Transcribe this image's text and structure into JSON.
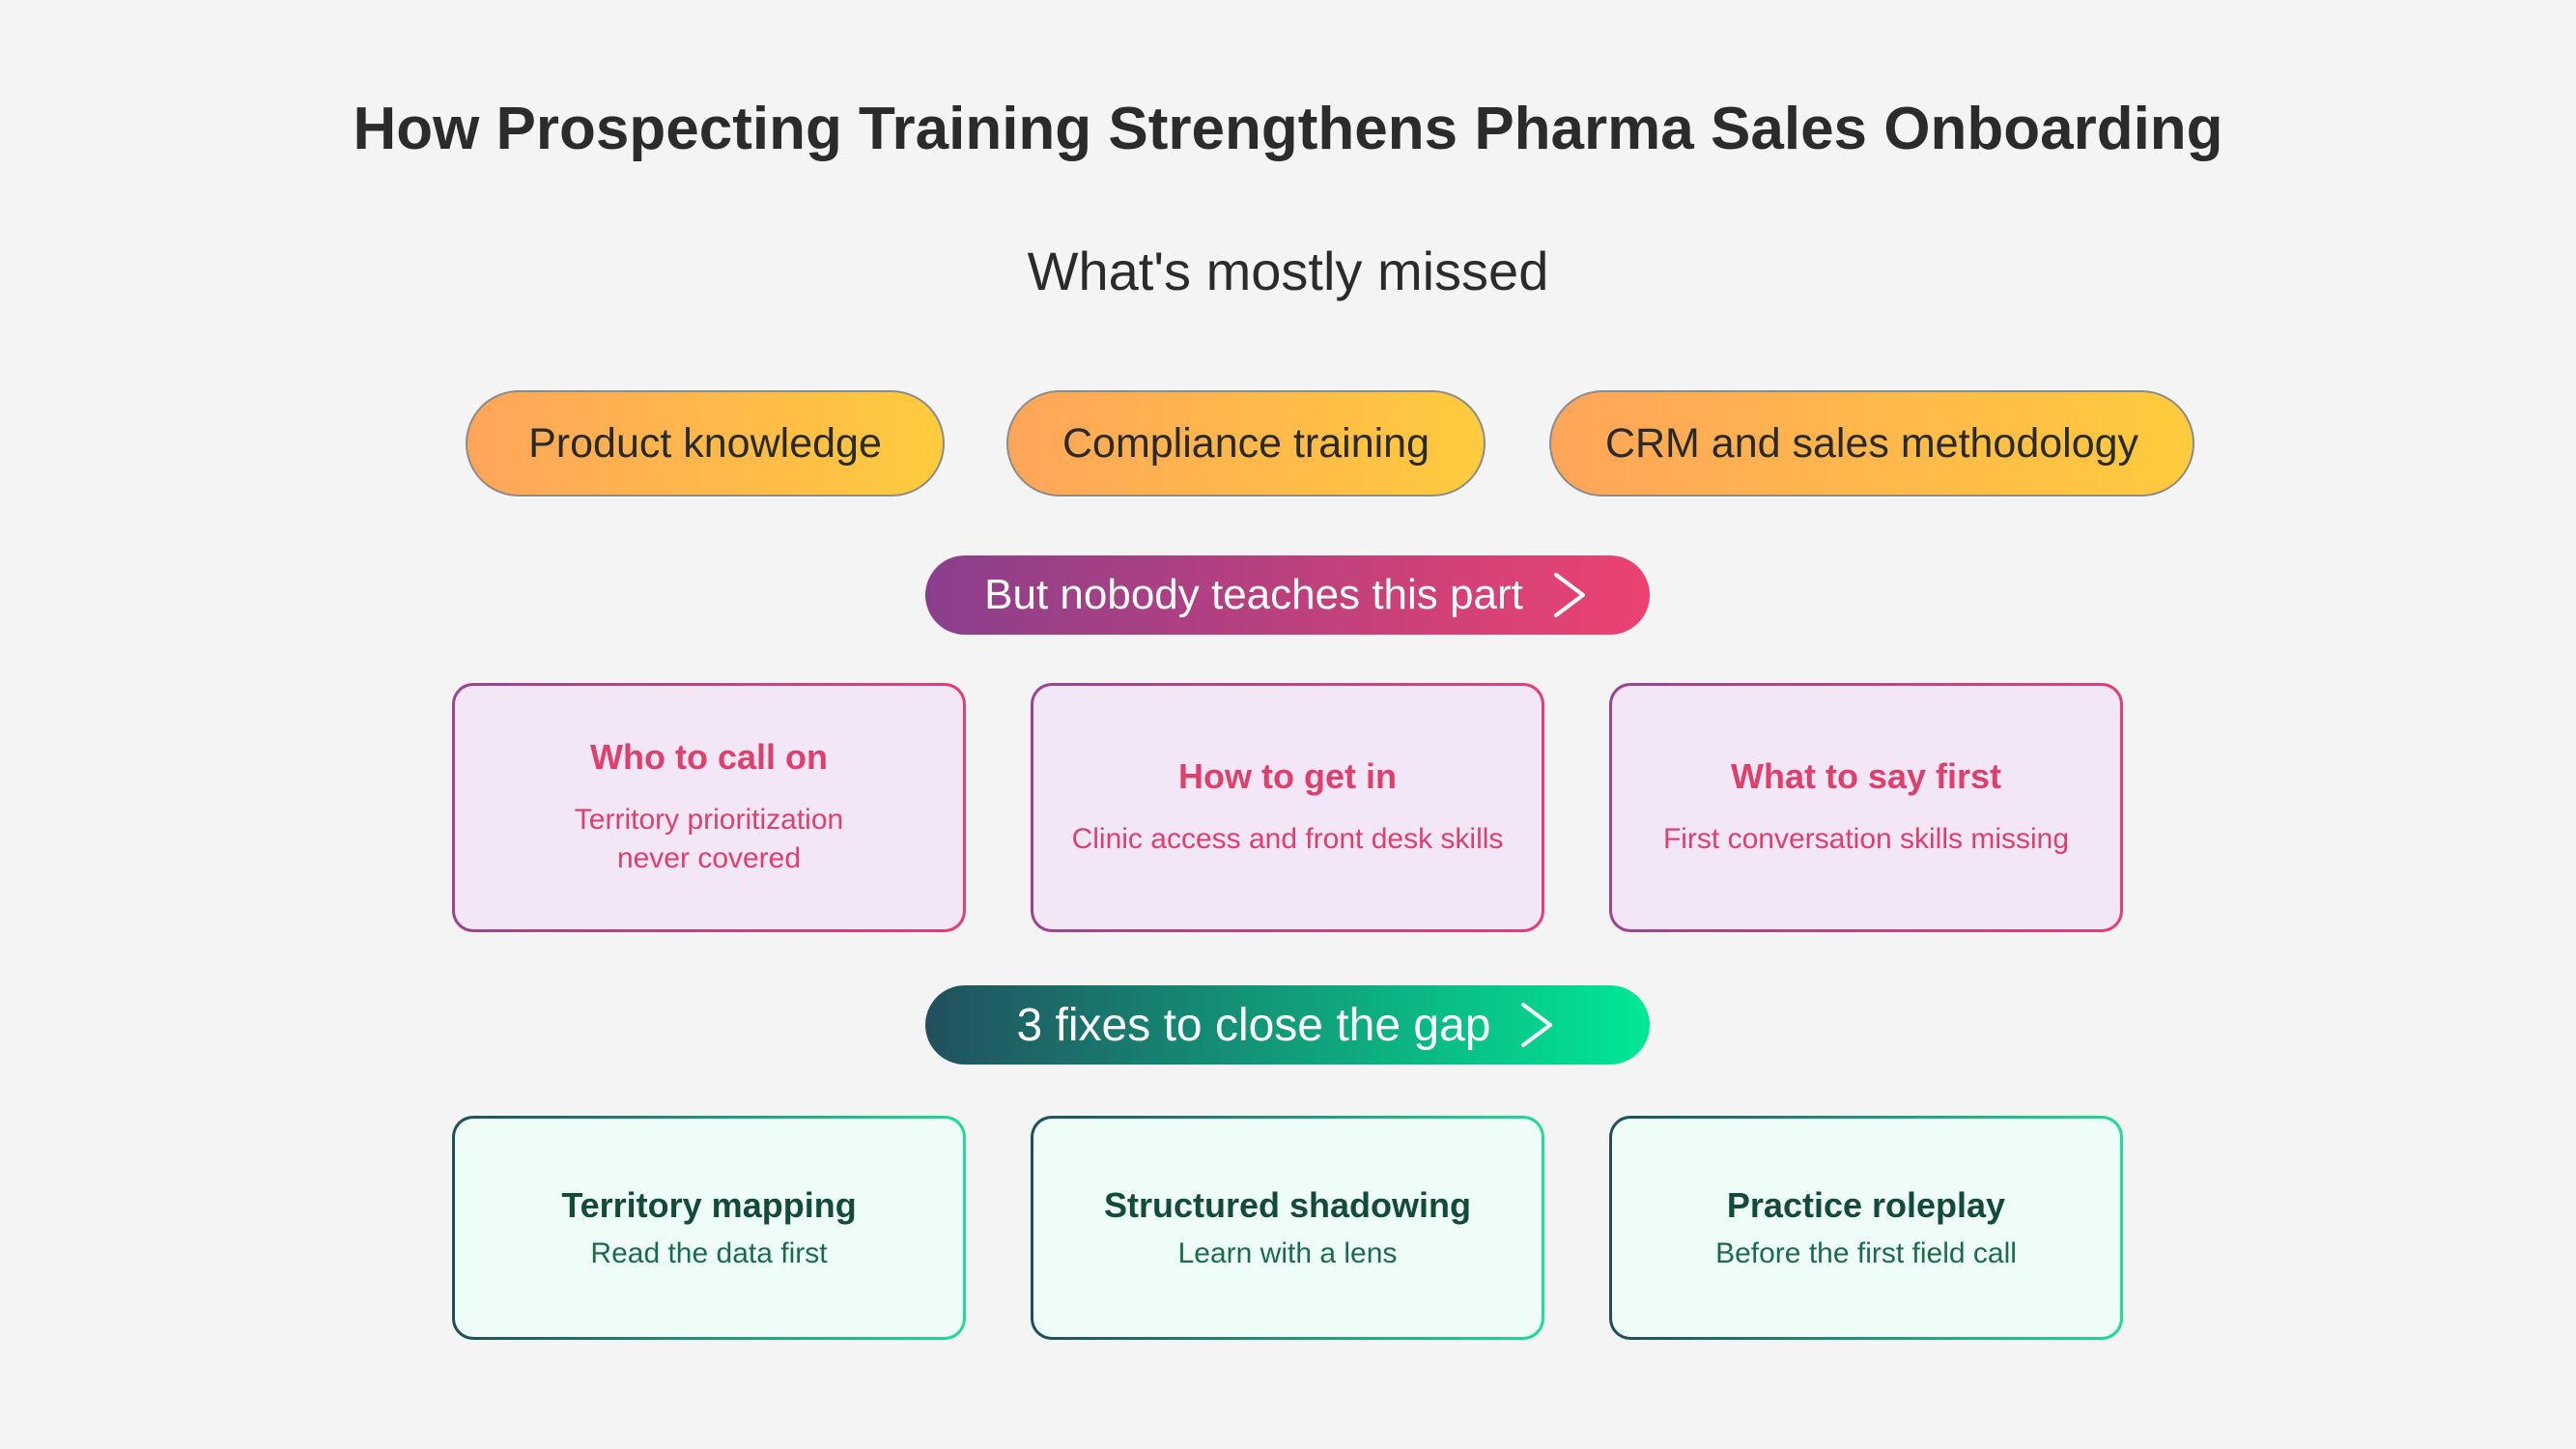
{
  "title": "How Prospecting Training Strengthens Pharma Sales Onboarding",
  "subtitle": "What's mostly missed",
  "covered_topics": [
    "Product knowledge",
    "Compliance training",
    "CRM and sales methodology"
  ],
  "gap_banner": {
    "label": "But nobody teaches this part",
    "icon": "chevron-right-icon"
  },
  "gaps": [
    {
      "heading": "Who to call on",
      "lines": [
        "Territory prioritization",
        "never covered"
      ]
    },
    {
      "heading": "How to get in",
      "lines": [
        "Clinic access and front desk skills"
      ]
    },
    {
      "heading": "What to say first",
      "lines": [
        "First conversation skills missing"
      ]
    }
  ],
  "fix_banner": {
    "label": "3 fixes to close the gap",
    "icon": "chevron-right-icon"
  },
  "fixes": [
    {
      "heading": "Territory mapping",
      "detail": "Read the data first"
    },
    {
      "heading": "Structured shadowing",
      "detail": "Learn with a lens"
    },
    {
      "heading": "Practice roleplay",
      "detail": "Before the first field call"
    }
  ],
  "colors": {
    "background": "#f4f4f4",
    "pill_gradient": [
      "#ffa55a",
      "#ffcb3d"
    ],
    "gap_banner_gradient": [
      "#8a3f8c",
      "#ec4270"
    ],
    "fix_banner_gradient": [
      "#22505e",
      "#00e896"
    ],
    "gap_text": "#df3f6b",
    "fix_heading": "#134a3a",
    "fix_text": "#1a6b4b"
  }
}
